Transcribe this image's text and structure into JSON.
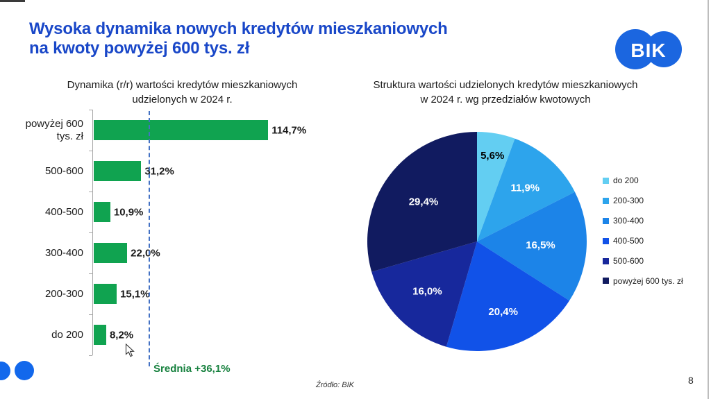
{
  "slide": {
    "title_line1": "Wysoka dynamika nowych kredytów mieszkaniowych",
    "title_line2": "na kwoty powyżej 600 tys. zł",
    "logo_text": "BIK",
    "source_note": "Źródło: BIK",
    "page_number": "8"
  },
  "colors": {
    "title": "#1947c8",
    "logo_blue": "#1b66e0",
    "bar_green": "#10a350",
    "average_line": "#4472c4",
    "average_text": "#15803d",
    "pie_slices": [
      "#63cef2",
      "#2da4ec",
      "#1c84e8",
      "#1152e8",
      "#17289c",
      "#111b60"
    ],
    "pie_label_text": [
      "#000000",
      "#ffffff",
      "#ffffff",
      "#ffffff",
      "#ffffff",
      "#ffffff"
    ]
  },
  "chart_data": [
    {
      "type": "bar",
      "orientation": "horizontal",
      "title_lines": [
        "Dynamika (r/r) wartości kredytów mieszkaniowych",
        "udzielonych w 2024 r."
      ],
      "categories": [
        "powyżej 600 tys. zł",
        "500-600",
        "400-500",
        "300-400",
        "200-300",
        "do 200"
      ],
      "values": [
        114.7,
        31.2,
        10.9,
        22.0,
        15.1,
        8.2
      ],
      "value_labels": [
        "114,7%",
        "31,2%",
        "10,9%",
        "22,0%",
        "15,1%",
        "8,2%"
      ],
      "unit": "%",
      "xlim": [
        0,
        125
      ],
      "grid": false,
      "average_line": {
        "value": 36.1,
        "label": "Średnia +36,1%"
      }
    },
    {
      "type": "pie",
      "title_lines": [
        "Struktura wartości udzielonych kredytów mieszkaniowych",
        "w 2024 r. wg przedziałów kwotowych"
      ],
      "labels": [
        "do 200",
        "200-300",
        "300-400",
        "400-500",
        "500-600",
        "powyżej 600 tys. zł"
      ],
      "values": [
        5.6,
        11.9,
        16.5,
        20.4,
        16.0,
        29.4
      ],
      "value_labels": [
        "5,6%",
        "11,9%",
        "16,5%",
        "20,4%",
        "16,0%",
        "29,4%"
      ],
      "start_angle_deg": 0,
      "direction": "clockwise",
      "legend_position": "right"
    }
  ]
}
